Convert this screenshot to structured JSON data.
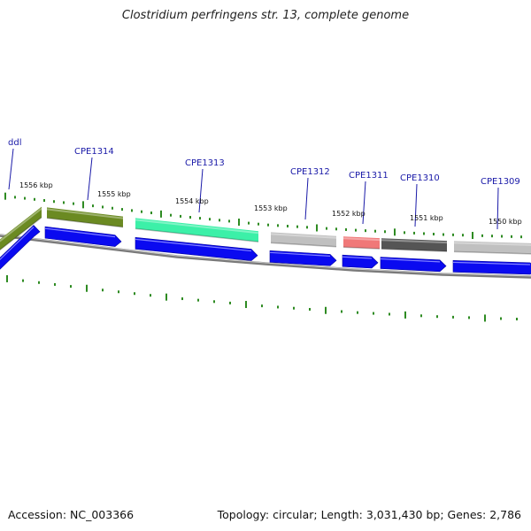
{
  "title": "Clostridium perfringens str. 13, complete genome",
  "footer": {
    "accession": "Accession: NC_003366",
    "summary": "Topology: circular; Length: 3,031,430 bp; Genes: 2,786"
  },
  "colors": {
    "cds_arrow": "#0a0af0",
    "backbone": "#808080",
    "tick": "#2e8b22",
    "gene_label": "#1a1aa8",
    "olive": "#6b8a22",
    "teal": "#3cf0a8",
    "light_gray": "#c0c0c0",
    "salmon": "#f07878",
    "dark_gray": "#555555"
  },
  "genes": [
    {
      "name": "ddl",
      "color": "olive"
    },
    {
      "name": "CPE1314",
      "color": "olive"
    },
    {
      "name": "CPE1313",
      "color": "teal"
    },
    {
      "name": "CPE1312",
      "color": "light_gray"
    },
    {
      "name": "CPE1311",
      "color": "salmon"
    },
    {
      "name": "CPE1310",
      "color": "dark_gray"
    },
    {
      "name": "CPE1309",
      "color": "light_gray"
    }
  ],
  "kbp_labels": [
    "1556 kbp",
    "1555 kbp",
    "1554 kbp",
    "1553 kbp",
    "1552 kbp",
    "1551 kbp",
    "1550 kbp"
  ]
}
